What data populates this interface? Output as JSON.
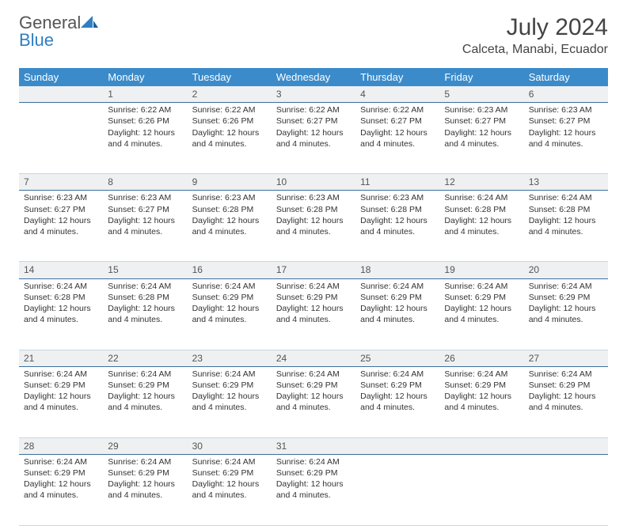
{
  "brand": {
    "word1": "General",
    "word2": "Blue"
  },
  "title": "July 2024",
  "location": "Calceta, Manabi, Ecuador",
  "weekdays": [
    "Sunday",
    "Monday",
    "Tuesday",
    "Wednesday",
    "Thursday",
    "Friday",
    "Saturday"
  ],
  "colors": {
    "header_bg": "#3b8bca",
    "header_text": "#ffffff",
    "daynum_bg": "#eef0f1",
    "daynum_border": "#3b6f9e",
    "cell_border": "#c7d6e2",
    "logo_blue": "#2f7fc2",
    "logo_gray": "#555555",
    "body_text": "#333333"
  },
  "start_offset": 1,
  "days": [
    {
      "n": 1,
      "sr": "6:22 AM",
      "ss": "6:26 PM",
      "dl": "12 hours and 4 minutes."
    },
    {
      "n": 2,
      "sr": "6:22 AM",
      "ss": "6:26 PM",
      "dl": "12 hours and 4 minutes."
    },
    {
      "n": 3,
      "sr": "6:22 AM",
      "ss": "6:27 PM",
      "dl": "12 hours and 4 minutes."
    },
    {
      "n": 4,
      "sr": "6:22 AM",
      "ss": "6:27 PM",
      "dl": "12 hours and 4 minutes."
    },
    {
      "n": 5,
      "sr": "6:23 AM",
      "ss": "6:27 PM",
      "dl": "12 hours and 4 minutes."
    },
    {
      "n": 6,
      "sr": "6:23 AM",
      "ss": "6:27 PM",
      "dl": "12 hours and 4 minutes."
    },
    {
      "n": 7,
      "sr": "6:23 AM",
      "ss": "6:27 PM",
      "dl": "12 hours and 4 minutes."
    },
    {
      "n": 8,
      "sr": "6:23 AM",
      "ss": "6:27 PM",
      "dl": "12 hours and 4 minutes."
    },
    {
      "n": 9,
      "sr": "6:23 AM",
      "ss": "6:28 PM",
      "dl": "12 hours and 4 minutes."
    },
    {
      "n": 10,
      "sr": "6:23 AM",
      "ss": "6:28 PM",
      "dl": "12 hours and 4 minutes."
    },
    {
      "n": 11,
      "sr": "6:23 AM",
      "ss": "6:28 PM",
      "dl": "12 hours and 4 minutes."
    },
    {
      "n": 12,
      "sr": "6:24 AM",
      "ss": "6:28 PM",
      "dl": "12 hours and 4 minutes."
    },
    {
      "n": 13,
      "sr": "6:24 AM",
      "ss": "6:28 PM",
      "dl": "12 hours and 4 minutes."
    },
    {
      "n": 14,
      "sr": "6:24 AM",
      "ss": "6:28 PM",
      "dl": "12 hours and 4 minutes."
    },
    {
      "n": 15,
      "sr": "6:24 AM",
      "ss": "6:28 PM",
      "dl": "12 hours and 4 minutes."
    },
    {
      "n": 16,
      "sr": "6:24 AM",
      "ss": "6:29 PM",
      "dl": "12 hours and 4 minutes."
    },
    {
      "n": 17,
      "sr": "6:24 AM",
      "ss": "6:29 PM",
      "dl": "12 hours and 4 minutes."
    },
    {
      "n": 18,
      "sr": "6:24 AM",
      "ss": "6:29 PM",
      "dl": "12 hours and 4 minutes."
    },
    {
      "n": 19,
      "sr": "6:24 AM",
      "ss": "6:29 PM",
      "dl": "12 hours and 4 minutes."
    },
    {
      "n": 20,
      "sr": "6:24 AM",
      "ss": "6:29 PM",
      "dl": "12 hours and 4 minutes."
    },
    {
      "n": 21,
      "sr": "6:24 AM",
      "ss": "6:29 PM",
      "dl": "12 hours and 4 minutes."
    },
    {
      "n": 22,
      "sr": "6:24 AM",
      "ss": "6:29 PM",
      "dl": "12 hours and 4 minutes."
    },
    {
      "n": 23,
      "sr": "6:24 AM",
      "ss": "6:29 PM",
      "dl": "12 hours and 4 minutes."
    },
    {
      "n": 24,
      "sr": "6:24 AM",
      "ss": "6:29 PM",
      "dl": "12 hours and 4 minutes."
    },
    {
      "n": 25,
      "sr": "6:24 AM",
      "ss": "6:29 PM",
      "dl": "12 hours and 4 minutes."
    },
    {
      "n": 26,
      "sr": "6:24 AM",
      "ss": "6:29 PM",
      "dl": "12 hours and 4 minutes."
    },
    {
      "n": 27,
      "sr": "6:24 AM",
      "ss": "6:29 PM",
      "dl": "12 hours and 4 minutes."
    },
    {
      "n": 28,
      "sr": "6:24 AM",
      "ss": "6:29 PM",
      "dl": "12 hours and 4 minutes."
    },
    {
      "n": 29,
      "sr": "6:24 AM",
      "ss": "6:29 PM",
      "dl": "12 hours and 4 minutes."
    },
    {
      "n": 30,
      "sr": "6:24 AM",
      "ss": "6:29 PM",
      "dl": "12 hours and 4 minutes."
    },
    {
      "n": 31,
      "sr": "6:24 AM",
      "ss": "6:29 PM",
      "dl": "12 hours and 4 minutes."
    }
  ],
  "labels": {
    "sunrise": "Sunrise:",
    "sunset": "Sunset:",
    "daylight": "Daylight:"
  }
}
